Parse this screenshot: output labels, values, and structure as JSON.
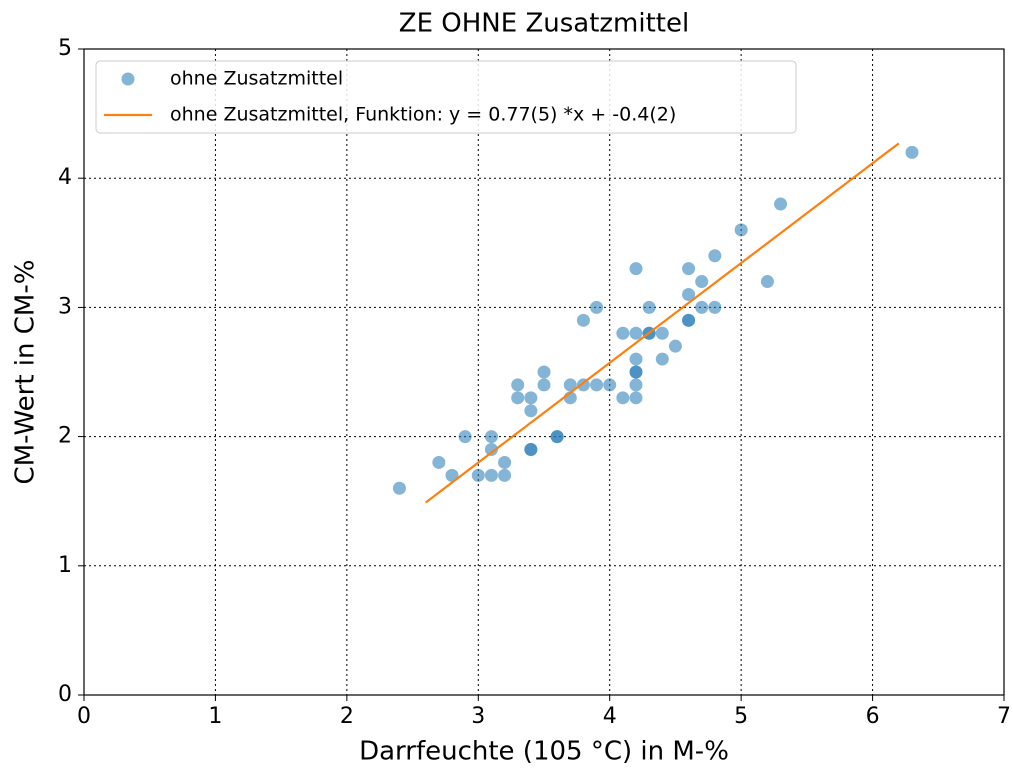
{
  "chart_data": {
    "type": "scatter",
    "title": "ZE OHNE Zusatzmittel",
    "x_label": "Darrfeuchte (105 °C) in M-%",
    "y_label": "CM-Wert in CM-%",
    "xlim": [
      0,
      7
    ],
    "xticks": [
      0,
      1,
      2,
      3,
      4,
      5,
      6,
      7
    ],
    "ylim": [
      0,
      5
    ],
    "yticks": [
      0,
      1,
      2,
      3,
      4,
      5
    ],
    "grid": true,
    "legend": "upper left",
    "series": [
      {
        "name": "ohne Zusatzmittel",
        "type": "scatter",
        "color": "#1f77b4",
        "x": [
          2.4,
          2.7,
          2.8,
          2.9,
          3.0,
          3.1,
          3.1,
          3.1,
          3.2,
          3.2,
          3.3,
          3.3,
          3.4,
          3.4,
          3.4,
          3.4,
          3.5,
          3.5,
          3.6,
          3.6,
          3.7,
          3.7,
          3.8,
          3.8,
          3.9,
          3.9,
          4.0,
          4.1,
          4.1,
          4.2,
          4.2,
          4.2,
          4.2,
          4.2,
          4.2,
          4.2,
          4.3,
          4.3,
          4.3,
          4.4,
          4.4,
          4.5,
          4.6,
          4.6,
          4.6,
          4.6,
          4.7,
          4.7,
          4.8,
          4.8,
          5.0,
          5.2,
          5.3,
          6.3
        ],
        "values": [
          1.6,
          1.8,
          1.7,
          2.0,
          1.7,
          1.7,
          1.9,
          2.0,
          1.7,
          1.8,
          2.3,
          2.4,
          1.9,
          1.9,
          2.2,
          2.3,
          2.4,
          2.5,
          2.0,
          2.0,
          2.3,
          2.4,
          2.4,
          2.9,
          2.4,
          3.0,
          2.4,
          2.3,
          2.8,
          2.3,
          2.4,
          2.5,
          2.5,
          2.6,
          2.8,
          3.3,
          2.8,
          2.8,
          3.0,
          2.6,
          2.8,
          2.7,
          2.9,
          2.9,
          3.1,
          3.3,
          3.0,
          3.2,
          3.0,
          3.4,
          3.6,
          3.2,
          3.8,
          4.2
        ]
      },
      {
        "name": "ohne Zusatzmittel, Funktion: y = 0.77(5) *x + -0.4(2)",
        "type": "line",
        "color": "#ff7f0e",
        "x": [
          2.6,
          6.2
        ],
        "values": [
          1.49,
          4.27
        ]
      }
    ]
  }
}
